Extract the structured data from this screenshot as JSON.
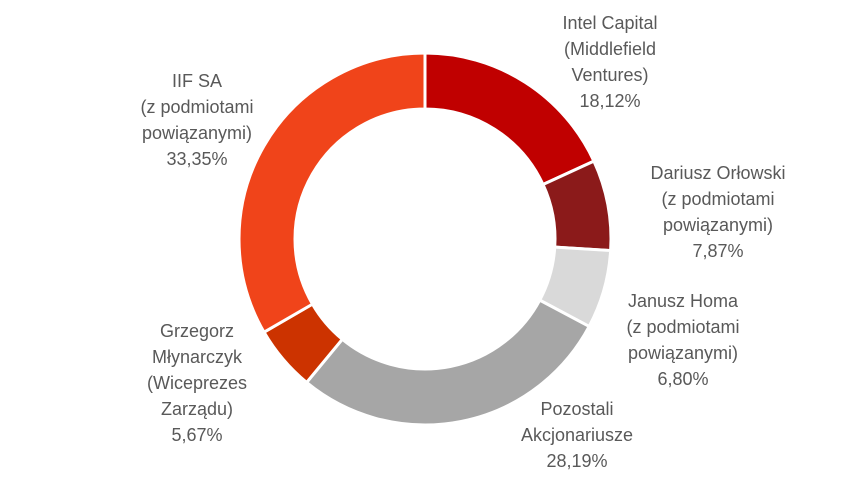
{
  "chart_data": {
    "type": "pie",
    "variant": "donut",
    "title": "",
    "start_angle_deg": 0,
    "direction": "clockwise",
    "slices": [
      {
        "lines": [
          "Intel Capital",
          "(Middlefield",
          "Ventures)"
        ],
        "value_label": "18,12%",
        "value": 18.12,
        "color": "#c00000"
      },
      {
        "lines": [
          "Dariusz Orłowski",
          "(z podmiotami",
          "powiązanymi)"
        ],
        "value_label": "7,87%",
        "value": 7.87,
        "color": "#8b1a1a"
      },
      {
        "lines": [
          "Janusz Homa",
          "(z podmiotami",
          "powiązanymi)"
        ],
        "value_label": "6,80%",
        "value": 6.8,
        "color": "#d9d9d9"
      },
      {
        "lines": [
          "Pozostali",
          "Akcjonariusze"
        ],
        "value_label": "28,19%",
        "value": 28.19,
        "color": "#a6a6a6"
      },
      {
        "lines": [
          "Grzegorz",
          "Młynarczyk",
          "(Wiceprezes",
          "Zarządu)"
        ],
        "value_label": "5,67%",
        "value": 5.67,
        "color": "#cc3300"
      },
      {
        "lines": [
          "IIF SA",
          "(z podmiotami",
          "powiązanymi)"
        ],
        "value_label": "33,35%",
        "value": 33.35,
        "color": "#f0441a"
      }
    ]
  }
}
